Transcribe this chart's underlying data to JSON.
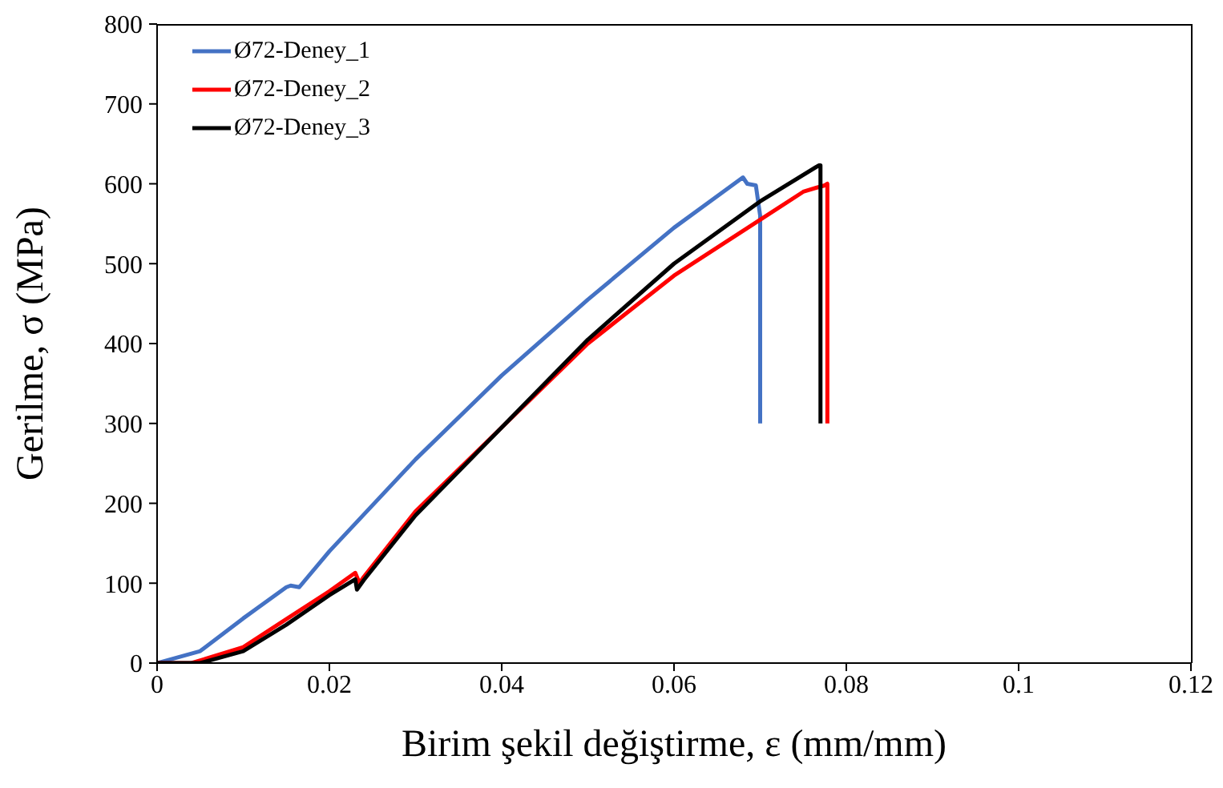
{
  "chart_data": {
    "type": "line",
    "xlabel": "Birim şekil değiştirme, ε (mm/mm)",
    "ylabel": "Gerilme, σ (MPa)",
    "xlim": [
      0,
      0.12
    ],
    "xticks": [
      {
        "value": 0,
        "label": "0"
      },
      {
        "value": 0.02,
        "label": "0.02"
      },
      {
        "value": 0.04,
        "label": "0.04"
      },
      {
        "value": 0.06,
        "label": "0.06"
      },
      {
        "value": 0.08,
        "label": "0.08"
      },
      {
        "value": 0.1,
        "label": "0.1"
      },
      {
        "value": 0.12,
        "label": "0.12"
      }
    ],
    "ylim": [
      0,
      800
    ],
    "yticks": [
      0,
      100,
      200,
      300,
      400,
      500,
      600,
      700,
      800
    ],
    "grid": false,
    "legend": "top left",
    "marker": "none",
    "line_style": "solid",
    "series": [
      {
        "name": "Ø72-Deney_1",
        "color": "#4472c4",
        "x": [
          0,
          0.005,
          0.01,
          0.015,
          0.0155,
          0.0165,
          0.02,
          0.03,
          0.04,
          0.05,
          0.06,
          0.068,
          0.0685,
          0.0695,
          0.07,
          0.07
        ],
        "values": [
          0,
          15,
          56,
          95,
          97,
          95,
          140,
          255,
          360,
          455,
          545,
          608,
          600,
          598,
          560,
          300
        ]
      },
      {
        "name": "Ø72-Deney_2",
        "color": "#ff0000",
        "x": [
          0,
          0.004,
          0.01,
          0.015,
          0.02,
          0.023,
          0.0235,
          0.024,
          0.03,
          0.04,
          0.05,
          0.06,
          0.07,
          0.075,
          0.0765,
          0.0775,
          0.0778,
          0.0778
        ],
        "values": [
          0,
          0,
          20,
          55,
          90,
          113,
          100,
          108,
          190,
          295,
          400,
          485,
          555,
          590,
          595,
          598,
          600,
          300
        ]
      },
      {
        "name": "Ø72-Deney_3",
        "color": "#000000",
        "x": [
          0,
          0.005,
          0.01,
          0.015,
          0.02,
          0.023,
          0.0232,
          0.024,
          0.03,
          0.04,
          0.05,
          0.06,
          0.07,
          0.0768,
          0.077,
          0.077
        ],
        "values": [
          0,
          0,
          15,
          48,
          85,
          105,
          92,
          104,
          185,
          295,
          405,
          500,
          578,
          623,
          623,
          300
        ]
      }
    ]
  }
}
